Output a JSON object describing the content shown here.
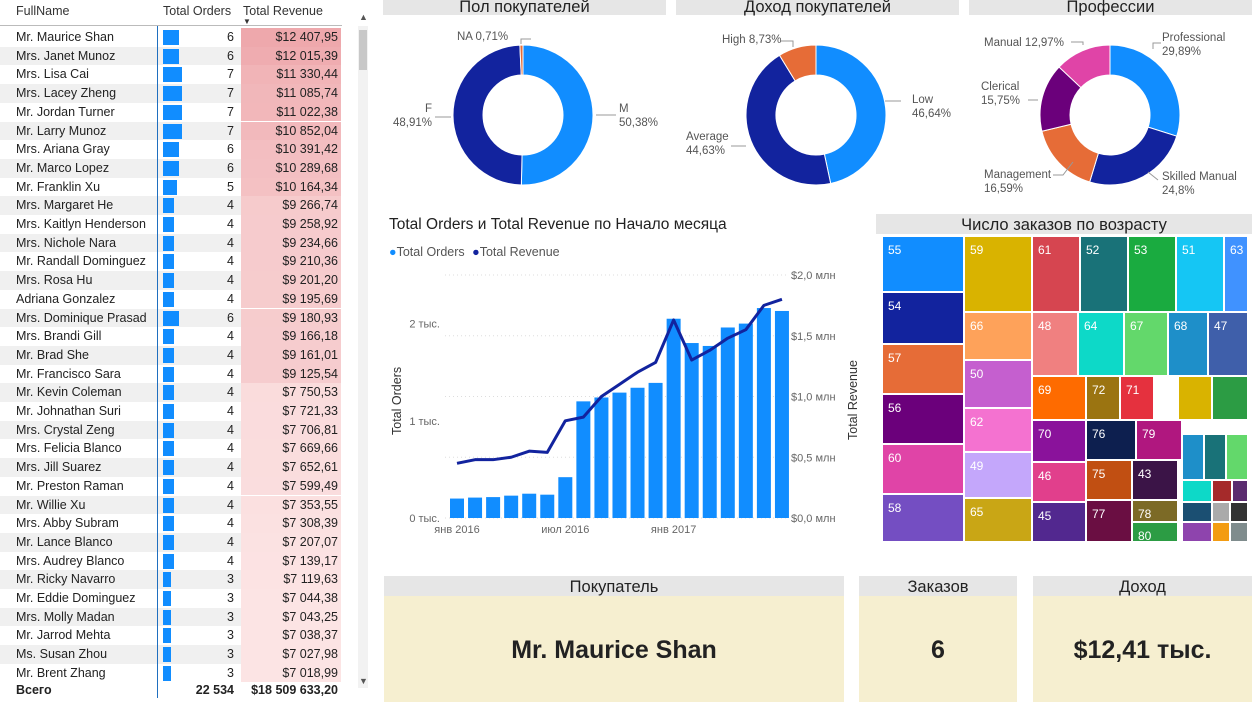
{
  "table": {
    "headers": {
      "name": "FullName",
      "orders": "Total Orders",
      "revenue": "Total Revenue"
    },
    "rows": [
      {
        "name": "Mr. Maurice Shan",
        "orders": "6",
        "revenue": "$12 407,95"
      },
      {
        "name": "Mrs. Janet Munoz",
        "orders": "6",
        "revenue": "$12 015,39"
      },
      {
        "name": "Mrs. Lisa Cai",
        "orders": "7",
        "revenue": "$11 330,44"
      },
      {
        "name": "Mrs. Lacey Zheng",
        "orders": "7",
        "revenue": "$11 085,74"
      },
      {
        "name": "Mr. Jordan Turner",
        "orders": "7",
        "revenue": "$11 022,38"
      },
      {
        "name": "Mr. Larry Munoz",
        "orders": "7",
        "revenue": "$10 852,04"
      },
      {
        "name": "Mrs. Ariana Gray",
        "orders": "6",
        "revenue": "$10 391,42"
      },
      {
        "name": "Mr. Marco Lopez",
        "orders": "6",
        "revenue": "$10 289,68"
      },
      {
        "name": "Mr. Franklin Xu",
        "orders": "5",
        "revenue": "$10 164,34"
      },
      {
        "name": "Mrs. Margaret He",
        "orders": "4",
        "revenue": "$9 266,74"
      },
      {
        "name": "Mrs. Kaitlyn Henderson",
        "orders": "4",
        "revenue": "$9 258,92"
      },
      {
        "name": "Mrs. Nichole Nara",
        "orders": "4",
        "revenue": "$9 234,66"
      },
      {
        "name": "Mr. Randall Dominguez",
        "orders": "4",
        "revenue": "$9 210,36"
      },
      {
        "name": "Mrs. Rosa Hu",
        "orders": "4",
        "revenue": "$9 201,20"
      },
      {
        "name": "Adriana Gonzalez",
        "orders": "4",
        "revenue": "$9 195,69"
      },
      {
        "name": "Mrs. Dominique Prasad",
        "orders": "6",
        "revenue": "$9 180,93"
      },
      {
        "name": "Mrs. Brandi Gill",
        "orders": "4",
        "revenue": "$9 166,18"
      },
      {
        "name": "Mr. Brad She",
        "orders": "4",
        "revenue": "$9 161,01"
      },
      {
        "name": "Mr. Francisco Sara",
        "orders": "4",
        "revenue": "$9 125,54"
      },
      {
        "name": "Mr. Kevin Coleman",
        "orders": "4",
        "revenue": "$7 750,53"
      },
      {
        "name": "Mr. Johnathan Suri",
        "orders": "4",
        "revenue": "$7 721,33"
      },
      {
        "name": "Mrs. Crystal Zeng",
        "orders": "4",
        "revenue": "$7 706,81"
      },
      {
        "name": "Mrs. Felicia Blanco",
        "orders": "4",
        "revenue": "$7 669,66"
      },
      {
        "name": "Mrs. Jill Suarez",
        "orders": "4",
        "revenue": "$7 652,61"
      },
      {
        "name": "Mr. Preston Raman",
        "orders": "4",
        "revenue": "$7 599,49"
      },
      {
        "name": "Mr. Willie Xu",
        "orders": "4",
        "revenue": "$7 353,55"
      },
      {
        "name": "Mrs. Abby Subram",
        "orders": "4",
        "revenue": "$7 308,39"
      },
      {
        "name": "Mr. Lance Blanco",
        "orders": "4",
        "revenue": "$7 207,07"
      },
      {
        "name": "Mrs. Audrey Blanco",
        "orders": "4",
        "revenue": "$7 139,17"
      },
      {
        "name": "Mr. Ricky Navarro",
        "orders": "3",
        "revenue": "$7 119,63"
      },
      {
        "name": "Mr. Eddie Dominguez",
        "orders": "3",
        "revenue": "$7 044,38"
      },
      {
        "name": "Mrs. Molly Madan",
        "orders": "3",
        "revenue": "$7 043,25"
      },
      {
        "name": "Mr. Jarrod Mehta",
        "orders": "3",
        "revenue": "$7 038,37"
      },
      {
        "name": "Ms. Susan Zhou",
        "orders": "3",
        "revenue": "$7 027,98"
      },
      {
        "name": "Mr. Brent Zhang",
        "orders": "3",
        "revenue": "$7 018,99"
      }
    ],
    "total": {
      "label": "Всего",
      "orders": "22 534",
      "revenue": "$18 509 633,20"
    }
  },
  "donuts": [
    {
      "title": "Пол покупателей",
      "slices": [
        {
          "label": "M",
          "pct": "50,38%",
          "value": 50.38,
          "color": "#118dff"
        },
        {
          "label": "F",
          "pct": "48,91%",
          "value": 48.91,
          "color": "#12239e"
        },
        {
          "label": "NA",
          "pct": "0,71%",
          "value": 0.71,
          "color": "#e66c37"
        }
      ]
    },
    {
      "title": "Доход покупателей",
      "slices": [
        {
          "label": "Low",
          "pct": "46,64%",
          "value": 46.64,
          "color": "#118dff"
        },
        {
          "label": "Average",
          "pct": "44,63%",
          "value": 44.63,
          "color": "#12239e"
        },
        {
          "label": "High",
          "pct": "8,73%",
          "value": 8.73,
          "color": "#e66c37"
        }
      ]
    },
    {
      "title": "Профессии",
      "slices": [
        {
          "label": "Professional",
          "pct": "29,89%",
          "value": 29.89,
          "color": "#118dff"
        },
        {
          "label": "Skilled Manual",
          "pct": "24,8%",
          "value": 24.8,
          "color": "#12239e"
        },
        {
          "label": "Management",
          "pct": "16,59%",
          "value": 16.59,
          "color": "#e66c37"
        },
        {
          "label": "Clerical",
          "pct": "15,75%",
          "value": 15.75,
          "color": "#6b007b"
        },
        {
          "label": "Manual",
          "pct": "12,97%",
          "value": 12.97,
          "color": "#e044a7"
        }
      ]
    }
  ],
  "combo": {
    "title": "Total Orders и Total Revenue по Начало месяца",
    "legend": [
      "Total Orders",
      "Total Revenue"
    ],
    "y_left_label": "Total Orders",
    "y_right_label": "Total Revenue",
    "left_ticks": [
      "0 тыс.",
      "1 тыс.",
      "2 тыс."
    ],
    "right_ticks": [
      "$0,0 млн",
      "$0,5 млн",
      "$1,0 млн",
      "$1,5 млн",
      "$2,0 млн"
    ],
    "x_ticks": [
      "янв 2016",
      "июл 2016",
      "янв 2017"
    ]
  },
  "chart_data": {
    "type": "bar",
    "title": "Total Orders и Total Revenue по Начало месяца",
    "x": [
      "2016-01",
      "2016-02",
      "2016-03",
      "2016-04",
      "2016-05",
      "2016-06",
      "2016-07",
      "2016-08",
      "2016-09",
      "2016-10",
      "2016-11",
      "2016-12",
      "2017-01",
      "2017-02",
      "2017-03",
      "2017-04",
      "2017-05",
      "2017-06",
      "2017-07",
      "2017-08"
    ],
    "series": [
      {
        "name": "Total Orders",
        "type": "bar",
        "values": [
          200,
          210,
          215,
          230,
          250,
          240,
          420,
          1200,
          1240,
          1290,
          1340,
          1390,
          2050,
          1800,
          1770,
          1960,
          2000,
          2160,
          2130,
          0
        ]
      },
      {
        "name": "Total Revenue",
        "type": "line",
        "values": [
          0.45,
          0.48,
          0.48,
          0.5,
          0.55,
          0.54,
          0.8,
          0.83,
          1.0,
          1.1,
          1.2,
          1.28,
          1.63,
          1.3,
          1.38,
          1.48,
          1.55,
          1.75,
          1.8,
          0
        ]
      }
    ],
    "ylim_left": [
      0,
      2500
    ],
    "ylim_right": [
      0,
      2.0
    ]
  },
  "treemap": {
    "title": "Число заказов по возрасту",
    "cells": [
      {
        "label": "55",
        "color": "#118dff"
      },
      {
        "label": "54",
        "color": "#12239e"
      },
      {
        "label": "57",
        "color": "#e66c37"
      },
      {
        "label": "56",
        "color": "#6b007b"
      },
      {
        "label": "60",
        "color": "#e044a7"
      },
      {
        "label": "58",
        "color": "#744ec2"
      },
      {
        "label": "59",
        "color": "#d9b300"
      },
      {
        "label": "66",
        "color": "#fea25a"
      },
      {
        "label": "50",
        "color": "#c55fcf"
      },
      {
        "label": "62",
        "color": "#f472d0"
      },
      {
        "label": "49",
        "color": "#c4a7fb"
      },
      {
        "label": "65",
        "color": "#c9a615"
      },
      {
        "label": "61",
        "color": "#d64550"
      },
      {
        "label": "52",
        "color": "#197278"
      },
      {
        "label": "53",
        "color": "#1aab40"
      },
      {
        "label": "51",
        "color": "#15c6f4"
      },
      {
        "label": "63",
        "color": "#4092ff"
      },
      {
        "label": "48",
        "color": "#f08080"
      },
      {
        "label": "64",
        "color": "#0dd9c8"
      },
      {
        "label": "67",
        "color": "#63d86b"
      },
      {
        "label": "68",
        "color": "#1e8fc9"
      },
      {
        "label": "47",
        "color": "#3f5faa"
      },
      {
        "label": "69",
        "color": "#fe6b00"
      },
      {
        "label": "72",
        "color": "#9b7411"
      },
      {
        "label": "71",
        "color": "#e5313e"
      },
      {
        "label": "70",
        "color": "#8a129b"
      },
      {
        "label": "76",
        "color": "#0d1f4f"
      },
      {
        "label": "79",
        "color": "#b0177f"
      },
      {
        "label": "46",
        "color": "#e13f8c"
      },
      {
        "label": "75",
        "color": "#c14f12"
      },
      {
        "label": "43",
        "color": "#3b1447"
      },
      {
        "label": "78",
        "color": "#7c6a26"
      },
      {
        "label": "45",
        "color": "#52288f"
      },
      {
        "label": "77",
        "color": "#6a0e42"
      },
      {
        "label": "80",
        "color": "#2c9c44"
      }
    ]
  },
  "cards": [
    {
      "header": "Покупатель",
      "value": "Mr. Maurice Shan"
    },
    {
      "header": "Заказов",
      "value": "6"
    },
    {
      "header": "Доход",
      "value": "$12,41 тыс."
    }
  ]
}
